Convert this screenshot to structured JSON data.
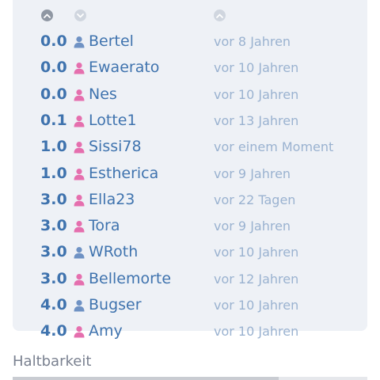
{
  "colors": {
    "score": "#3f73ae",
    "name": "#3f73ae",
    "time": "#9ab2d0",
    "male": "#6f92c4",
    "female": "#e56fae",
    "card_bg": "#eef1f6"
  },
  "header": {
    "sort_asc_icon": "chevron-up-icon",
    "sort_desc_icon": "chevron-down-icon",
    "sort_time_icon": "chevron-up-icon"
  },
  "rows": [
    {
      "score": "0.0",
      "gender": "male",
      "name": "Bertel",
      "time": "vor 8 Jahren"
    },
    {
      "score": "0.0",
      "gender": "female",
      "name": "Ewaerato",
      "time": "vor 10 Jahren"
    },
    {
      "score": "0.0",
      "gender": "female",
      "name": "Nes",
      "time": "vor 10 Jahren"
    },
    {
      "score": "0.1",
      "gender": "female",
      "name": "Lotte1",
      "time": "vor 13 Jahren"
    },
    {
      "score": "1.0",
      "gender": "female",
      "name": "Sissi78",
      "time": "vor einem Moment"
    },
    {
      "score": "1.0",
      "gender": "female",
      "name": "Estherica",
      "time": "vor 9 Jahren"
    },
    {
      "score": "3.0",
      "gender": "female",
      "name": "Ella23",
      "time": "vor 22 Tagen"
    },
    {
      "score": "3.0",
      "gender": "female",
      "name": "Tora",
      "time": "vor 9 Jahren"
    },
    {
      "score": "3.0",
      "gender": "male",
      "name": "WRoth",
      "time": "vor 10 Jahren"
    },
    {
      "score": "3.0",
      "gender": "female",
      "name": "Bellemorte",
      "time": "vor 12 Jahren"
    },
    {
      "score": "4.0",
      "gender": "male",
      "name": "Bugser",
      "time": "vor 10 Jahren"
    },
    {
      "score": "4.0",
      "gender": "female",
      "name": "Amy",
      "time": "vor 10 Jahren"
    }
  ],
  "section": {
    "label": "Haltbarkeit",
    "progress": 0.75
  }
}
